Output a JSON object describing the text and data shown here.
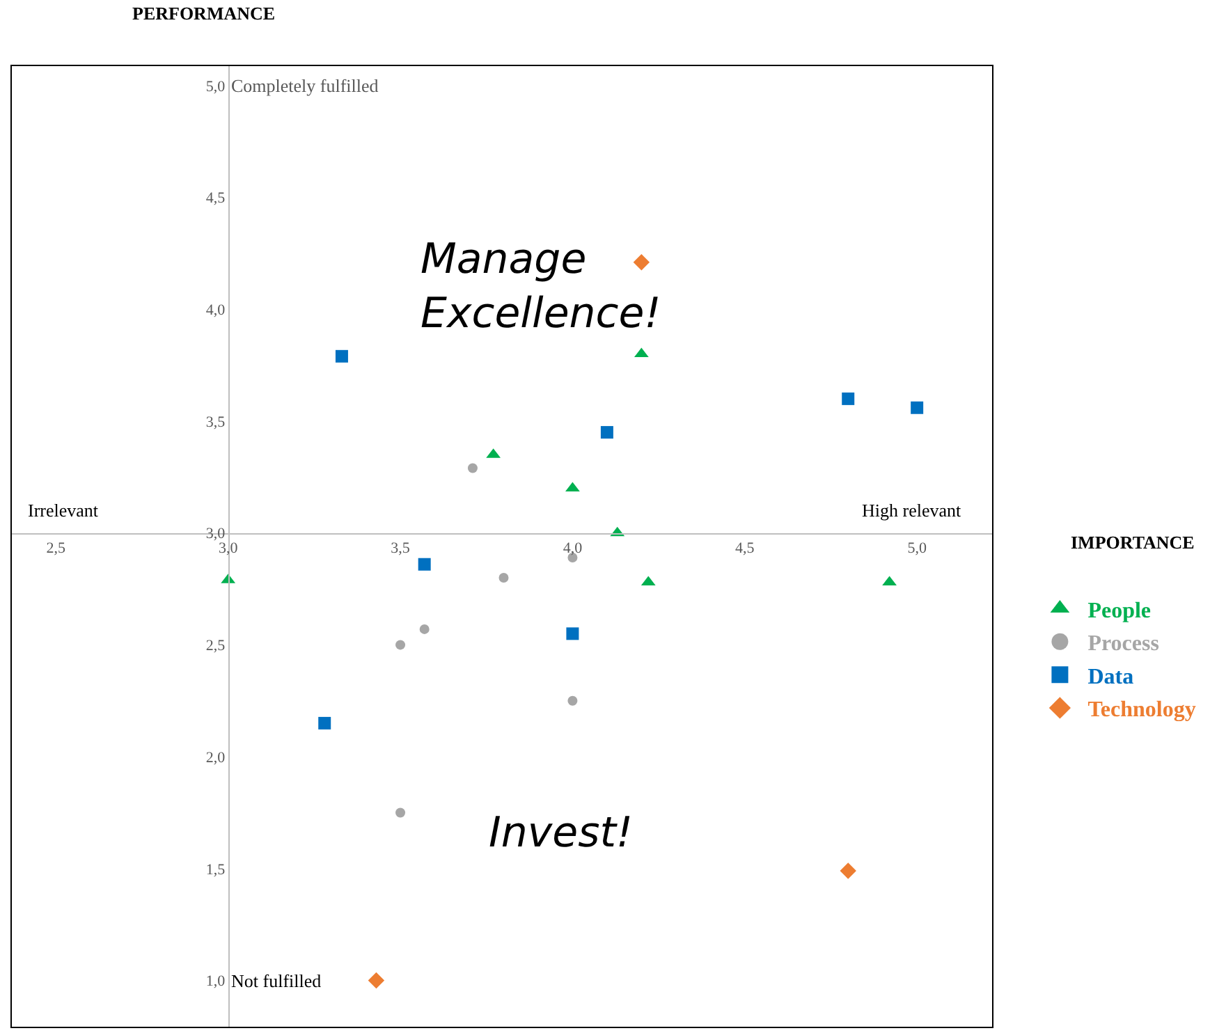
{
  "chart_data": {
    "type": "scatter",
    "xlabel": "IMPORTANCE",
    "ylabel": "PERFORMANCE",
    "xlim": [
      2.37,
      5.22
    ],
    "ylim": [
      0.79,
      5.09
    ],
    "xticks": [
      {
        "value": 2.5,
        "label": "2,5"
      },
      {
        "value": 3,
        "label": "3,0"
      },
      {
        "value": 3.5,
        "label": "3,5"
      },
      {
        "value": 4,
        "label": "4,0"
      },
      {
        "value": 4.5,
        "label": "4,5"
      },
      {
        "value": 5,
        "label": "5,0"
      }
    ],
    "yticks": [
      {
        "value": 1,
        "label": "1,0"
      },
      {
        "value": 1.5,
        "label": "1,5"
      },
      {
        "value": 2,
        "label": "2,0"
      },
      {
        "value": 2.5,
        "label": "2,5"
      },
      {
        "value": 3,
        "label": "3,0"
      },
      {
        "value": 3.5,
        "label": "3,5"
      },
      {
        "value": 4,
        "label": "4,0"
      },
      {
        "value": 4.5,
        "label": "4,5"
      },
      {
        "value": 5,
        "label": "5,0"
      }
    ],
    "grid": false,
    "legend": "right",
    "annotations": [
      "Completely fulfilled",
      "Not fulfilled",
      "Irrelevant",
      "High relevant",
      "Manage\nExcellence!",
      "Invest!"
    ],
    "series": [
      {
        "name": "People",
        "color": "#00b050",
        "marker": "triangle",
        "x": [
          3.0,
          3.77,
          4.0,
          4.13,
          4.2,
          4.22,
          4.92
        ],
        "values": [
          2.79,
          3.35,
          3.2,
          3.0,
          3.8,
          2.78,
          2.78
        ]
      },
      {
        "name": "Process",
        "color": "#a6a6a6",
        "marker": "circle",
        "x": [
          3.71,
          3.8,
          4.0,
          3.57,
          3.5,
          4.0,
          3.5
        ],
        "values": [
          3.29,
          2.8,
          2.89,
          2.57,
          2.5,
          2.25,
          1.75
        ]
      },
      {
        "name": "Data",
        "color": "#0070c0",
        "marker": "square",
        "x": [
          3.33,
          4.1,
          4.8,
          5.0,
          3.57,
          4.0,
          3.28
        ],
        "values": [
          3.79,
          3.45,
          3.6,
          3.56,
          2.86,
          2.55,
          2.15
        ]
      },
      {
        "name": "Technology",
        "color": "#ed7d31",
        "marker": "diamond",
        "x": [
          4.2,
          4.8,
          3.43
        ],
        "values": [
          4.21,
          1.49,
          1.0
        ]
      }
    ]
  }
}
